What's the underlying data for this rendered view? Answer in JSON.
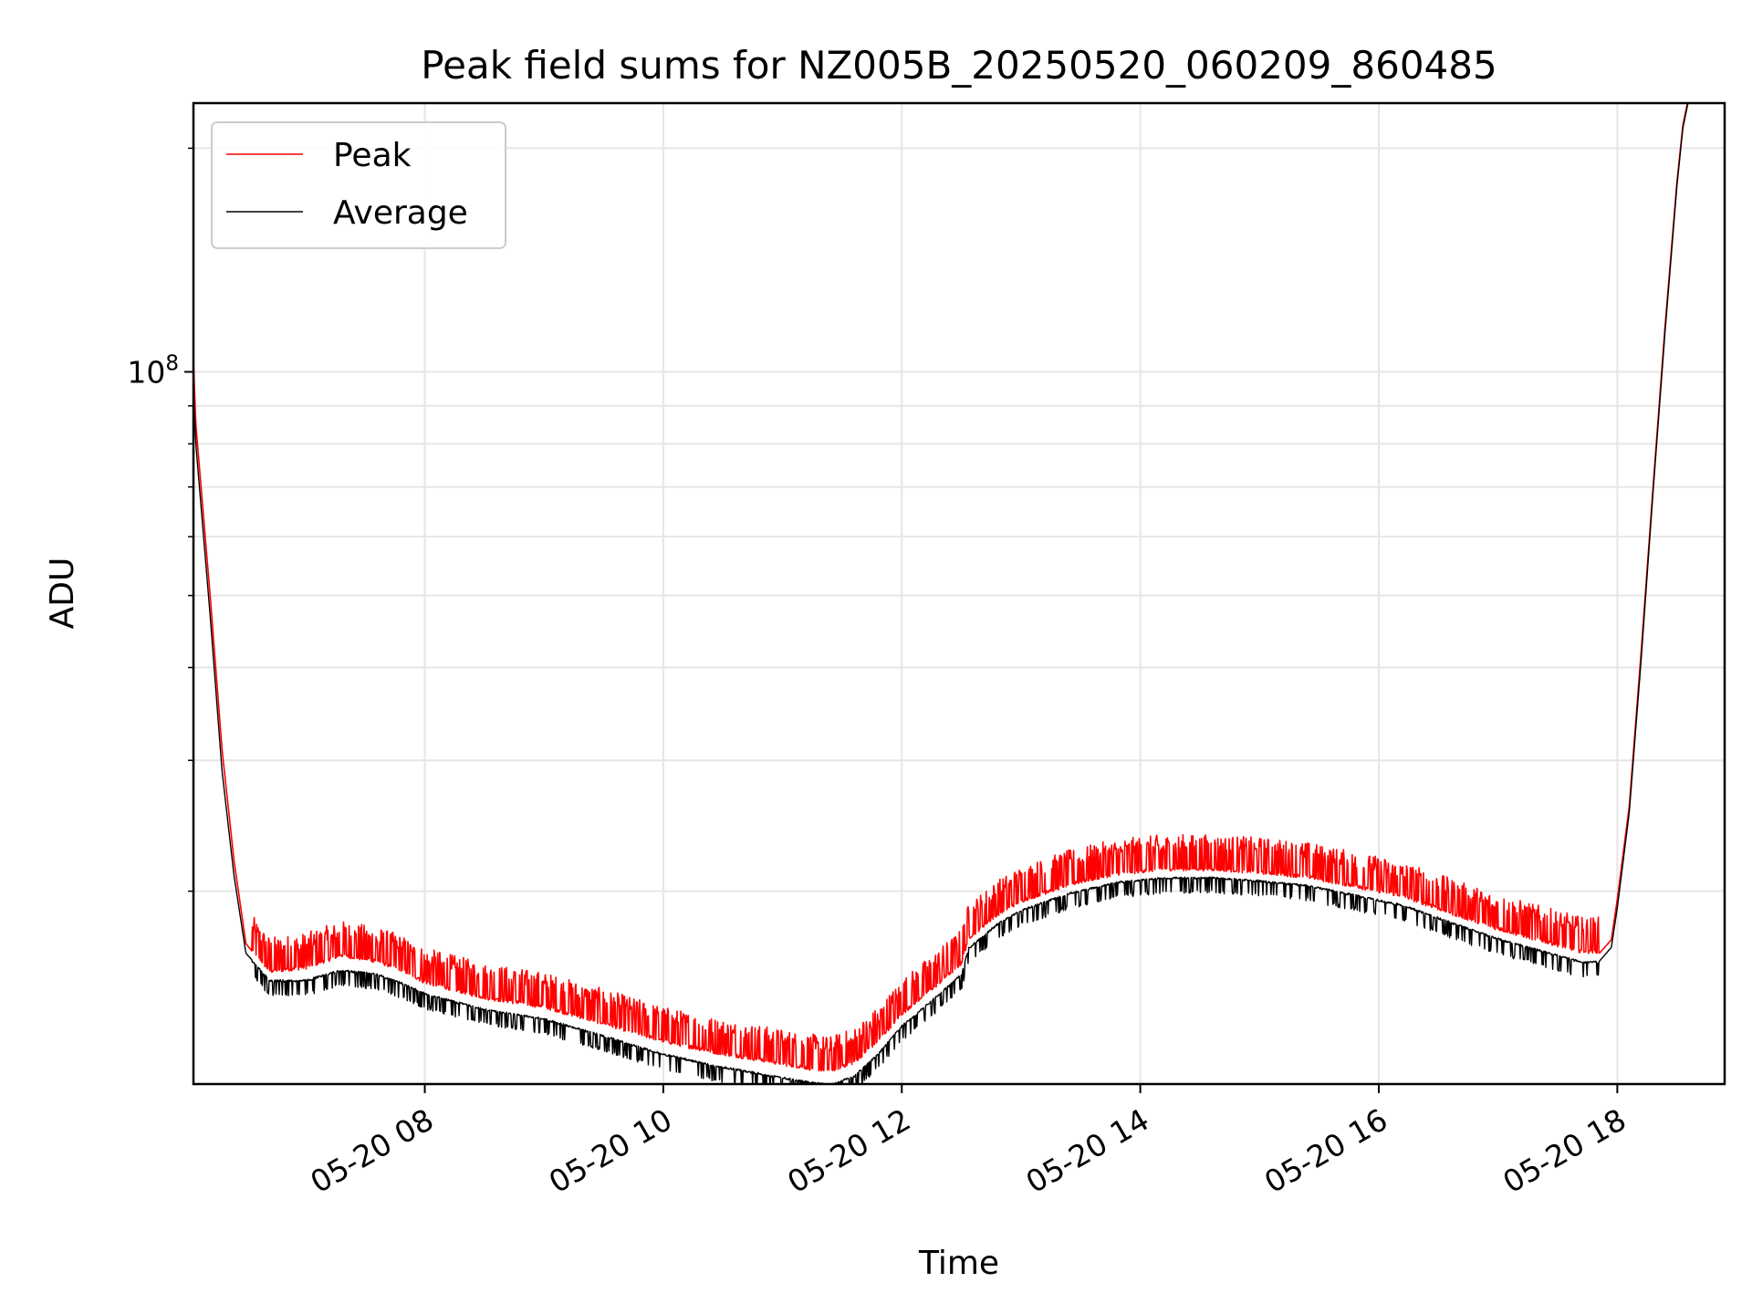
{
  "chart_data": {
    "type": "line",
    "title": "Peak field sums for NZ005B_20250520_060209_860485",
    "xlabel": "Time",
    "ylabel": "ADU",
    "x_unit": "hours (2025-05-20)",
    "xlim": [
      6.06,
      18.9
    ],
    "ylim": [
      11000000,
      230000000
    ],
    "yscale": "log",
    "grid": true,
    "legend_position": "upper-left",
    "x_tick_labels": [
      {
        "x": 8,
        "label": "05-20 08"
      },
      {
        "x": 10,
        "label": "05-20 10"
      },
      {
        "x": 12,
        "label": "05-20 12"
      },
      {
        "x": 14,
        "label": "05-20 14"
      },
      {
        "x": 16,
        "label": "05-20 16"
      },
      {
        "x": 18,
        "label": "05-20 18"
      }
    ],
    "y_major_ticks": [
      {
        "value": 100000000,
        "base": "10",
        "exp": "8"
      }
    ],
    "y_minor_ticks": [
      20000000,
      30000000,
      40000000,
      50000000,
      60000000,
      70000000,
      80000000,
      90000000,
      200000000
    ],
    "series": [
      {
        "name": "Peak",
        "color": "#ff0000",
        "noise_up": 0.12,
        "x": [
          6.03,
          6.08,
          6.2,
          6.3,
          6.4,
          6.5,
          6.7,
          7.0,
          7.3,
          7.6,
          7.8,
          8.0,
          8.5,
          9.0,
          9.5,
          10.0,
          10.4,
          10.8,
          11.2,
          11.4,
          11.6,
          11.8,
          12.0,
          12.3,
          12.5,
          12.56,
          12.8,
          13.0,
          13.4,
          13.8,
          14.2,
          14.6,
          15.0,
          15.4,
          15.8,
          16.2,
          16.6,
          17.0,
          17.4,
          17.7,
          17.85,
          17.95,
          18.0,
          18.1,
          18.2,
          18.3,
          18.4,
          18.5,
          18.55,
          18.6
        ],
        "y": [
          140000000,
          85000000,
          50000000,
          31000000,
          22000000,
          17000000,
          15500000,
          15700000,
          16300000,
          16000000,
          15600000,
          15000000,
          14300000,
          13900000,
          13200000,
          12500000,
          12100000,
          11800000,
          11500000,
          11400000,
          11700000,
          12500000,
          13600000,
          14900000,
          15900000,
          17200000,
          18500000,
          19300000,
          20300000,
          21000000,
          21300000,
          21300000,
          21100000,
          20800000,
          20200000,
          19600000,
          18600000,
          17700000,
          17000000,
          16500000,
          16500000,
          17200000,
          19500000,
          26000000,
          42000000,
          70000000,
          115000000,
          180000000,
          215000000,
          235000000
        ]
      },
      {
        "name": "Average",
        "color": "#000000",
        "noise_down": 0.05,
        "x": [
          6.03,
          6.08,
          6.2,
          6.3,
          6.4,
          6.5,
          6.7,
          7.0,
          7.3,
          7.6,
          7.8,
          8.0,
          8.5,
          9.0,
          9.5,
          10.0,
          10.4,
          10.8,
          11.2,
          11.4,
          11.6,
          11.8,
          12.0,
          12.3,
          12.5,
          12.56,
          12.8,
          13.0,
          13.4,
          13.8,
          14.2,
          14.6,
          15.0,
          15.4,
          15.8,
          16.2,
          16.6,
          17.0,
          17.4,
          17.7,
          17.85,
          17.95,
          18.0,
          18.1,
          18.2,
          18.3,
          18.4,
          18.5,
          18.55,
          18.6
        ],
        "y": [
          120000000,
          80000000,
          47000000,
          29000000,
          21000000,
          16500000,
          15200000,
          15200000,
          15700000,
          15500000,
          15100000,
          14600000,
          13900000,
          13500000,
          12800000,
          12100000,
          11700000,
          11400000,
          11100000,
          11000000,
          11300000,
          12100000,
          13200000,
          14500000,
          15500000,
          16800000,
          18100000,
          18900000,
          19900000,
          20600000,
          20900000,
          20900000,
          20700000,
          20400000,
          19800000,
          19200000,
          18200000,
          17300000,
          16600000,
          16100000,
          16100000,
          16800000,
          19000000,
          25500000,
          41000000,
          69000000,
          113000000,
          178000000,
          213000000,
          233000000
        ]
      }
    ]
  }
}
